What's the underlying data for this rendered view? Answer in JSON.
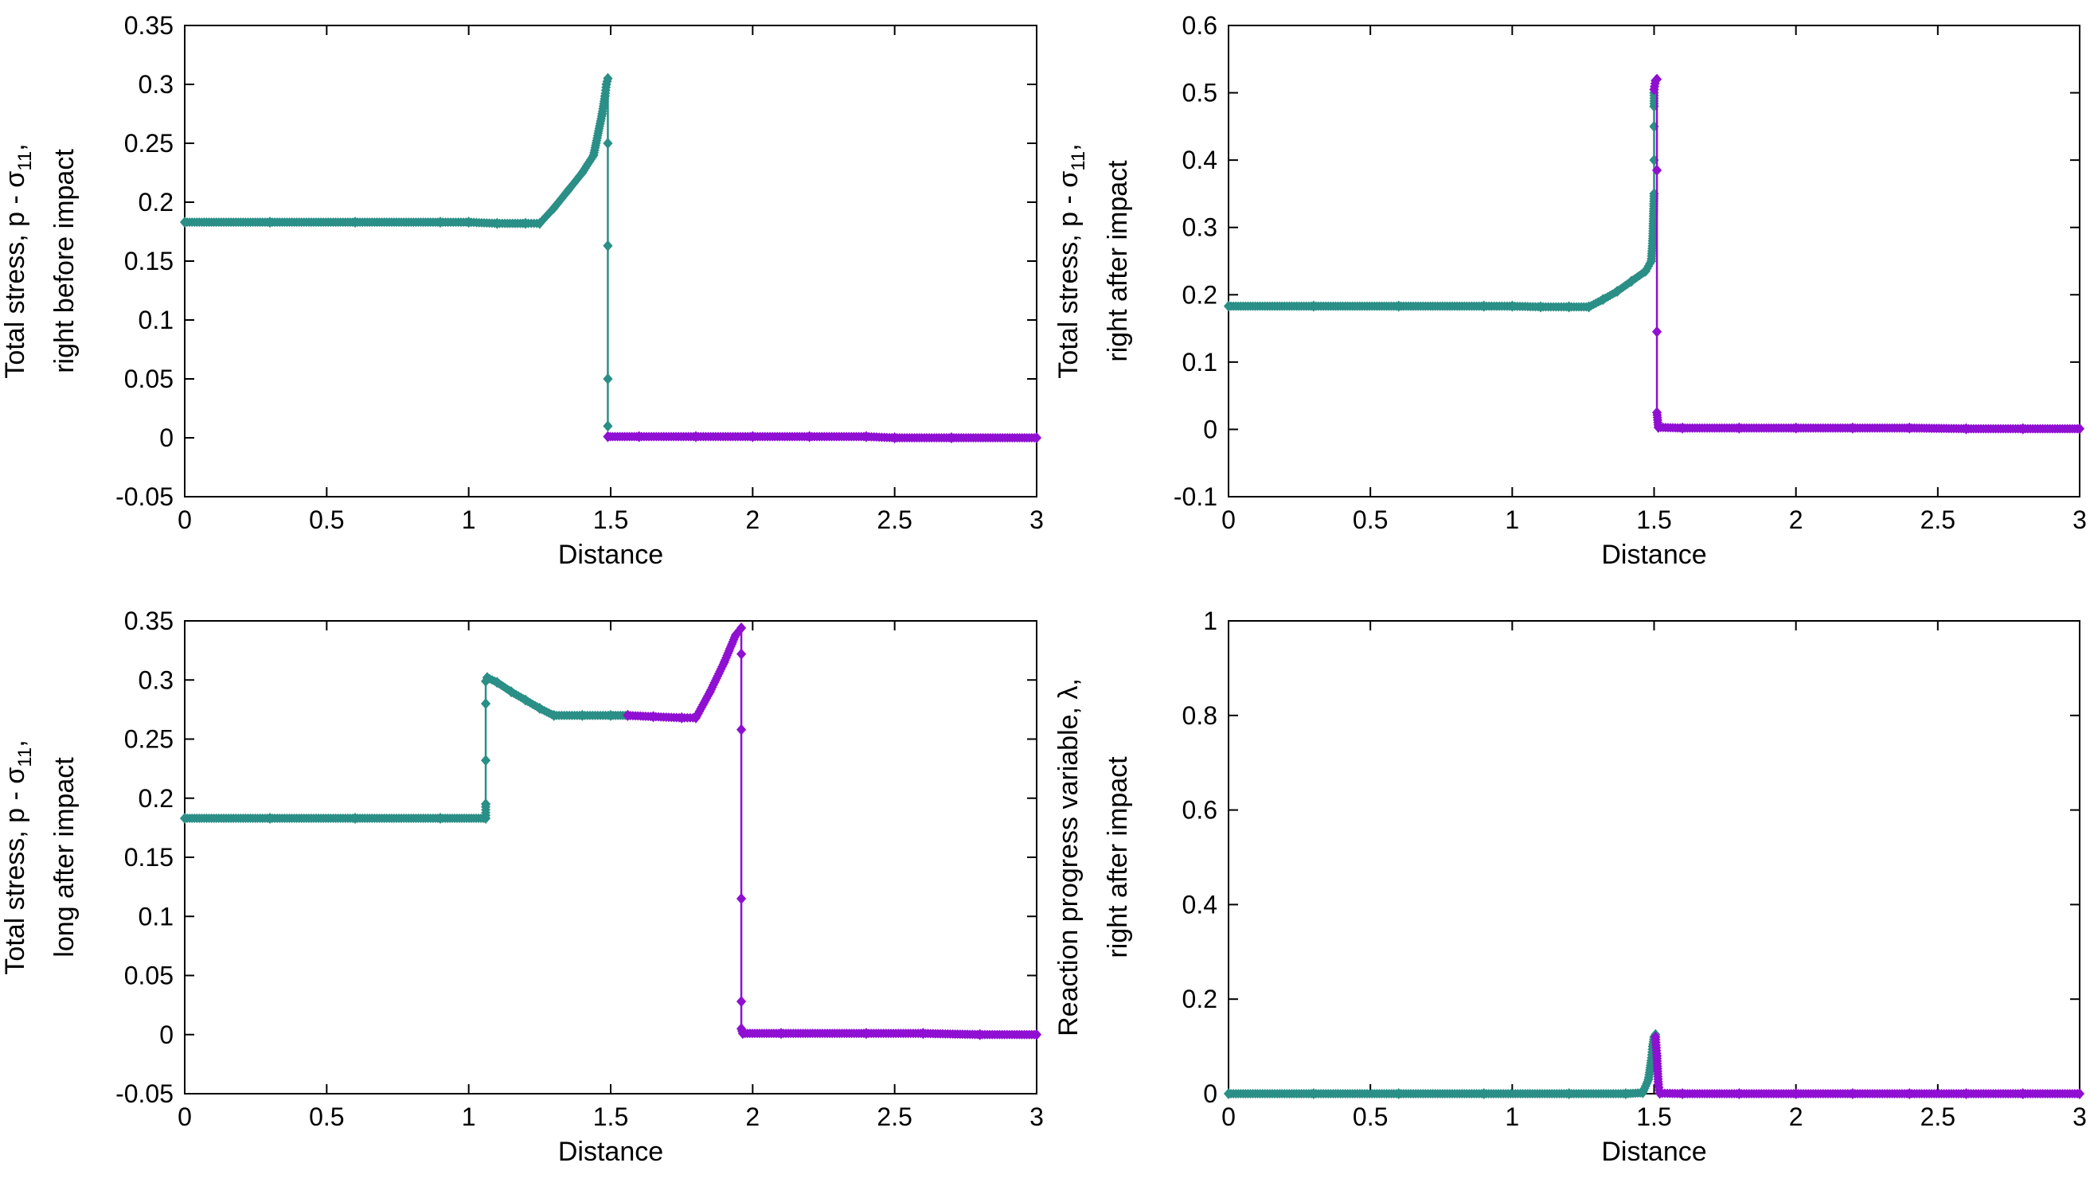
{
  "colors": {
    "teal": "#2a8f86",
    "purple": "#8f0fd2"
  },
  "chart_data": [
    {
      "type": "line",
      "xlabel": "Distance",
      "ylabel_lines": [
        "Total stress, p - σ",
        "11",
        ",",
        "right before impact"
      ],
      "xlim": [
        0,
        3
      ],
      "ylim": [
        -0.05,
        0.35
      ],
      "xticks": [
        0,
        0.5,
        1,
        1.5,
        2,
        2.5,
        3
      ],
      "xtick_labels": [
        "0",
        "0.5",
        "1",
        "1.5",
        "2",
        "2.5",
        "3"
      ],
      "yticks": [
        -0.05,
        0,
        0.05,
        0.1,
        0.15,
        0.2,
        0.25,
        0.3,
        0.35
      ],
      "ytick_labels": [
        "-0.05",
        "0",
        "0.05",
        "0.1",
        "0.15",
        "0.2",
        "0.25",
        "0.3",
        "0.35"
      ],
      "series": [
        {
          "name": "teal",
          "color": "#2a8f86",
          "x": [
            0,
            0.3,
            0.6,
            0.9,
            1.0,
            1.1,
            1.2,
            1.25,
            1.3,
            1.35,
            1.4,
            1.44,
            1.47,
            1.48,
            1.485,
            1.49,
            1.49,
            1.49,
            1.49,
            1.49
          ],
          "y": [
            0.183,
            0.183,
            0.183,
            0.183,
            0.183,
            0.182,
            0.182,
            0.182,
            0.195,
            0.21,
            0.225,
            0.24,
            0.275,
            0.29,
            0.3,
            0.305,
            0.25,
            0.163,
            0.05,
            0.01
          ]
        },
        {
          "name": "purple",
          "color": "#8f0fd2",
          "x": [
            1.49,
            1.6,
            1.8,
            2.0,
            2.2,
            2.4,
            2.5,
            2.7,
            3.0
          ],
          "y": [
            0.001,
            0.001,
            0.001,
            0.001,
            0.001,
            0.001,
            0.0,
            0.0,
            0.0
          ]
        }
      ]
    },
    {
      "type": "line",
      "xlabel": "Distance",
      "ylabel_lines": [
        "Total stress, p - σ",
        "11",
        ",",
        "right after impact"
      ],
      "xlim": [
        0,
        3
      ],
      "ylim": [
        -0.1,
        0.6
      ],
      "xticks": [
        0,
        0.5,
        1,
        1.5,
        2,
        2.5,
        3
      ],
      "xtick_labels": [
        "0",
        "0.5",
        "1",
        "1.5",
        "2",
        "2.5",
        "3"
      ],
      "yticks": [
        -0.1,
        0,
        0.1,
        0.2,
        0.3,
        0.4,
        0.5,
        0.6
      ],
      "ytick_labels": [
        "-0.1",
        "0",
        "0.1",
        "0.2",
        "0.3",
        "0.4",
        "0.5",
        "0.6"
      ],
      "series": [
        {
          "name": "teal",
          "color": "#2a8f86",
          "x": [
            0,
            0.3,
            0.6,
            0.9,
            1.0,
            1.1,
            1.2,
            1.27,
            1.32,
            1.37,
            1.42,
            1.47,
            1.49,
            1.495,
            1.5,
            1.5,
            1.5,
            1.5,
            1.5
          ],
          "y": [
            0.183,
            0.183,
            0.183,
            0.183,
            0.183,
            0.182,
            0.182,
            0.182,
            0.193,
            0.205,
            0.22,
            0.235,
            0.25,
            0.28,
            0.35,
            0.4,
            0.45,
            0.48,
            0.5
          ]
        },
        {
          "name": "purple",
          "color": "#8f0fd2",
          "x": [
            1.5,
            1.505,
            1.51,
            1.51,
            1.51,
            1.51,
            1.515,
            1.6,
            1.8,
            2.0,
            2.2,
            2.4,
            2.6,
            2.8,
            3.0
          ],
          "y": [
            0.505,
            0.518,
            0.52,
            0.385,
            0.145,
            0.025,
            0.003,
            0.002,
            0.002,
            0.002,
            0.002,
            0.002,
            0.001,
            0.001,
            0.001
          ]
        }
      ]
    },
    {
      "type": "line",
      "xlabel": "Distance",
      "ylabel_lines": [
        "Total stress, p - σ",
        "11",
        ",",
        "long after impact"
      ],
      "xlim": [
        0,
        3
      ],
      "ylim": [
        -0.05,
        0.35
      ],
      "xticks": [
        0,
        0.5,
        1,
        1.5,
        2,
        2.5,
        3
      ],
      "xtick_labels": [
        "0",
        "0.5",
        "1",
        "1.5",
        "2",
        "2.5",
        "3"
      ],
      "yticks": [
        -0.05,
        0,
        0.05,
        0.1,
        0.15,
        0.2,
        0.25,
        0.3,
        0.35
      ],
      "ytick_labels": [
        "-0.05",
        "0",
        "0.05",
        "0.1",
        "0.15",
        "0.2",
        "0.25",
        "0.3",
        "0.35"
      ],
      "series": [
        {
          "name": "teal",
          "color": "#2a8f86",
          "x": [
            0,
            0.3,
            0.6,
            0.9,
            1.06,
            1.06,
            1.06,
            1.06,
            1.06,
            1.065,
            1.1,
            1.15,
            1.2,
            1.25,
            1.3,
            1.4,
            1.5,
            1.56
          ],
          "y": [
            0.183,
            0.183,
            0.183,
            0.183,
            0.183,
            0.195,
            0.232,
            0.28,
            0.299,
            0.302,
            0.298,
            0.29,
            0.283,
            0.276,
            0.27,
            0.27,
            0.27,
            0.27
          ]
        },
        {
          "name": "purple",
          "color": "#8f0fd2",
          "x": [
            1.56,
            1.65,
            1.75,
            1.8,
            1.85,
            1.9,
            1.94,
            1.96,
            1.96,
            1.96,
            1.96,
            1.96,
            1.96,
            1.965,
            2.1,
            2.4,
            2.6,
            2.8,
            3.0
          ],
          "y": [
            0.27,
            0.269,
            0.268,
            0.268,
            0.29,
            0.315,
            0.338,
            0.344,
            0.322,
            0.258,
            0.115,
            0.028,
            0.005,
            0.001,
            0.001,
            0.001,
            0.001,
            0.0,
            0.0
          ]
        }
      ]
    },
    {
      "type": "line",
      "xlabel": "Distance",
      "ylabel_lines": [
        "Reaction progress variable, λ,",
        "right after impact"
      ],
      "xlim": [
        0,
        3
      ],
      "ylim": [
        0,
        1
      ],
      "xticks": [
        0,
        0.5,
        1,
        1.5,
        2,
        2.5,
        3
      ],
      "xtick_labels": [
        "0",
        "0.5",
        "1",
        "1.5",
        "2",
        "2.5",
        "3"
      ],
      "yticks": [
        0,
        0.2,
        0.4,
        0.6,
        0.8,
        1
      ],
      "ytick_labels": [
        "0",
        "0.2",
        "0.4",
        "0.6",
        "0.8",
        "1"
      ],
      "series": [
        {
          "name": "teal",
          "color": "#2a8f86",
          "x": [
            0,
            0.3,
            0.6,
            0.9,
            1.2,
            1.4,
            1.46,
            1.48,
            1.49,
            1.495,
            1.5,
            1.505
          ],
          "y": [
            0,
            0,
            0,
            0,
            0,
            0,
            0.002,
            0.03,
            0.07,
            0.1,
            0.12,
            0.125
          ]
        },
        {
          "name": "purple",
          "color": "#8f0fd2",
          "x": [
            1.505,
            1.51,
            1.515,
            1.52,
            1.6,
            1.8,
            2.0,
            2.2,
            2.4,
            2.6,
            2.8,
            3.0
          ],
          "y": [
            0.12,
            0.08,
            0.02,
            0.001,
            0,
            0,
            0,
            0,
            0,
            0,
            0,
            0
          ]
        }
      ]
    }
  ]
}
